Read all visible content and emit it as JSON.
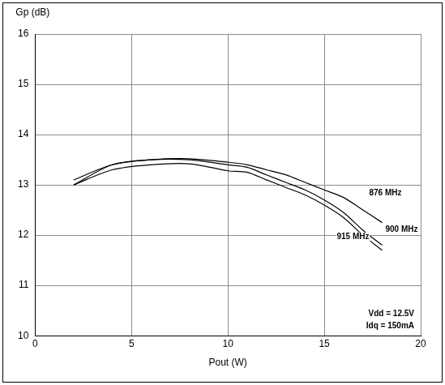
{
  "chart_data": {
    "type": "line",
    "y_label": "Gp (dB)",
    "x_label": "Pout (W)",
    "annotations": [
      "Vdd = 12.5V",
      "Idq = 150mA"
    ],
    "x": [
      2,
      4,
      6,
      8,
      10,
      11,
      12,
      13,
      14,
      15,
      16,
      17,
      18
    ],
    "series": [
      {
        "name": "876 MHz",
        "color": "#000000",
        "values": [
          13.1,
          13.4,
          13.5,
          13.52,
          13.45,
          13.4,
          13.3,
          13.2,
          13.05,
          12.9,
          12.75,
          12.5,
          12.25
        ]
      },
      {
        "name": "900 MHz",
        "color": "#000000",
        "values": [
          13.0,
          13.4,
          13.5,
          13.5,
          13.4,
          13.35,
          13.2,
          13.05,
          12.9,
          12.7,
          12.45,
          12.1,
          11.8
        ]
      },
      {
        "name": "915 MHz",
        "color": "#000000",
        "values": [
          13.0,
          13.3,
          13.4,
          13.42,
          13.28,
          13.25,
          13.1,
          12.95,
          12.8,
          12.6,
          12.35,
          12.0,
          11.7
        ]
      }
    ],
    "xlim": [
      0,
      20
    ],
    "ylim": [
      10,
      16
    ],
    "xticks": [
      0,
      5,
      10,
      15,
      20
    ],
    "yticks": [
      10,
      11,
      12,
      13,
      14,
      15,
      16
    ],
    "grid": true
  }
}
